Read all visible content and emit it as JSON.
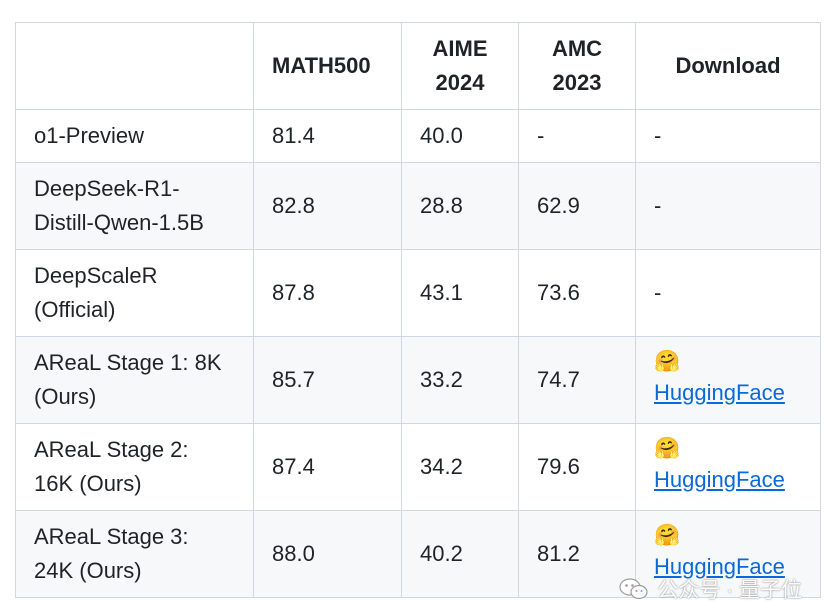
{
  "table": {
    "headers": [
      "",
      "MATH500",
      "AIME\n2024",
      "AMC\n2023",
      "Download"
    ],
    "header_lines": [
      [
        ""
      ],
      [
        "MATH500"
      ],
      [
        "AIME",
        "2024"
      ],
      [
        "AMC",
        "2023"
      ],
      [
        "Download"
      ]
    ],
    "rows": [
      {
        "model_lines": [
          "o1-Preview"
        ],
        "math500": "81.4",
        "aime2024": "40.0",
        "amc2023": "-",
        "download": "-"
      },
      {
        "model_lines": [
          "DeepSeek-R1-",
          "Distill-Qwen-1.5B"
        ],
        "math500": "82.8",
        "aime2024": "28.8",
        "amc2023": "62.9",
        "download": "-"
      },
      {
        "model_lines": [
          "DeepScaleR",
          "(Official)"
        ],
        "math500": "87.8",
        "aime2024": "43.1",
        "amc2023": "73.6",
        "download": "-"
      },
      {
        "model_lines": [
          "AReaL Stage 1: 8K",
          "(Ours)"
        ],
        "math500": "85.7",
        "aime2024": "33.2",
        "amc2023": "74.7",
        "download_emoji": "🤗",
        "download_link": "HuggingFace"
      },
      {
        "model_lines": [
          "AReaL Stage 2:",
          "16K (Ours)"
        ],
        "math500": "87.4",
        "aime2024": "34.2",
        "amc2023": "79.6",
        "download_emoji": "🤗",
        "download_link": "HuggingFace"
      },
      {
        "model_lines": [
          "AReaL Stage 3:",
          "24K (Ours)"
        ],
        "math500": "88.0",
        "aime2024": "40.2",
        "amc2023": "81.2",
        "download_emoji": "🤗",
        "download_link": "HuggingFace"
      }
    ]
  },
  "watermark": {
    "text": "公众号 · 量子位",
    "icon": "wechat-icon"
  }
}
